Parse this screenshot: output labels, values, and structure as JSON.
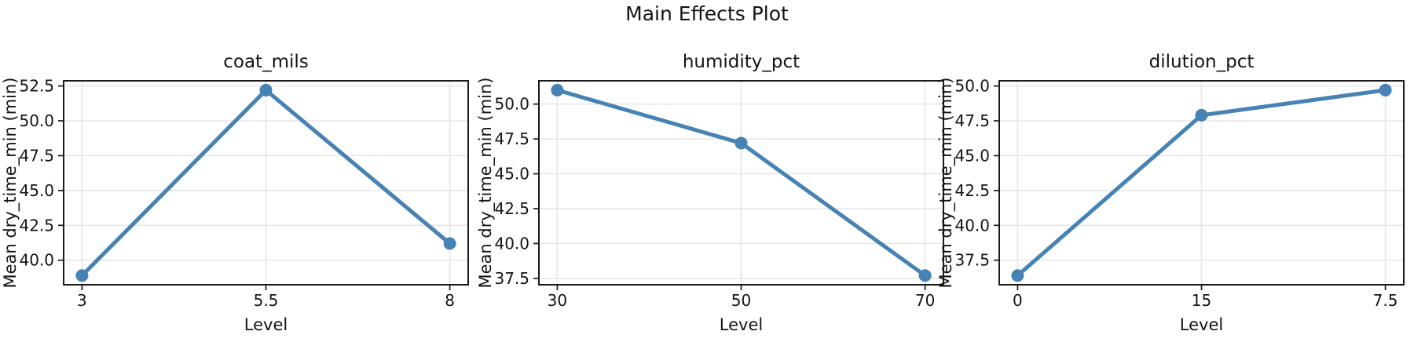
{
  "figure": {
    "suptitle": "Main Effects Plot",
    "background_color": "#ffffff",
    "accent": "#4682b4",
    "grid_color": "#e5e5e5",
    "spine_color": "#1a1a1a",
    "text_color": "#141414"
  },
  "chart_data": [
    {
      "type": "line",
      "title": "coat_mils",
      "xlabel": "Level",
      "ylabel": "Mean dry_time_min (min)",
      "categories": [
        "3",
        "5.5",
        "8"
      ],
      "values": [
        38.9,
        52.2,
        41.2
      ],
      "yticks": [
        "40.0",
        "42.5",
        "45.0",
        "47.5",
        "50.0",
        "52.5"
      ],
      "ylim": [
        38.24,
        52.87
      ],
      "grid": true,
      "legend": "none",
      "marker": "circle"
    },
    {
      "type": "line",
      "title": "humidity_pct",
      "xlabel": "Level",
      "ylabel": "Mean dry_time_min (min)",
      "categories": [
        "30",
        "50",
        "70"
      ],
      "values": [
        51.0,
        47.2,
        37.7
      ],
      "yticks": [
        "37.5",
        "40.0",
        "42.5",
        "45.0",
        "47.5",
        "50.0"
      ],
      "ylim": [
        37.04,
        51.67
      ],
      "grid": true,
      "legend": "none",
      "marker": "circle"
    },
    {
      "type": "line",
      "title": "dilution_pct",
      "xlabel": "Level",
      "ylabel": "Mean dry_time_min (min)",
      "categories": [
        "0",
        "15",
        "7.5"
      ],
      "values": [
        36.4,
        47.9,
        49.7
      ],
      "yticks": [
        "37.5",
        "40.0",
        "42.5",
        "45.0",
        "47.5",
        "50.0"
      ],
      "ylim": [
        35.74,
        50.37
      ],
      "grid": true,
      "legend": "none",
      "marker": "circle"
    }
  ]
}
